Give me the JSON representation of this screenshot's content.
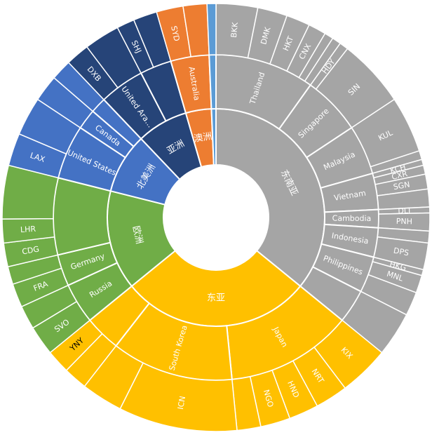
{
  "chart_data": {
    "type": "sunburst",
    "title": "",
    "colors": {
      "东南亚": "#a5a5a5",
      "东亚": "#ffc000",
      "欧洲": "#70ad47",
      "北美洲": "#4472c4",
      "亚洲": "#264478",
      "澳洲": "#ed7d31",
      "other": "#5b9bd5"
    },
    "nodes": [
      {
        "name": "东南亚",
        "value": 160,
        "children": [
          {
            "name": "Thailand",
            "value": 44,
            "children": [
              {
                "name": "BKK",
                "value": 14
              },
              {
                "name": "DMK",
                "value": 10
              },
              {
                "name": "HKT",
                "value": 8
              },
              {
                "name": "CNX",
                "value": 6
              },
              {
                "name": "",
                "value": 3
              },
              {
                "name": "",
                "value": 3
              }
            ]
          },
          {
            "name": "Singapore",
            "value": 26,
            "children": [
              {
                "name": "HDY",
                "value": 3
              },
              {
                "name": "SIN",
                "value": 23
              }
            ]
          },
          {
            "name": "Malaysia",
            "value": 22,
            "children": [
              {
                "name": "KUL",
                "value": 19
              },
              {
                "name": "",
                "value": 3
              }
            ]
          },
          {
            "name": "Vietnam",
            "value": 16,
            "children": [
              {
                "name": "KCH",
                "value": 2
              },
              {
                "name": "CXR",
                "value": 3
              },
              {
                "name": "SGN",
                "value": 5
              },
              {
                "name": "",
                "value": 6
              }
            ]
          },
          {
            "name": "Cambodia",
            "value": 8,
            "children": [
              {
                "name": "DLI",
                "value": 2
              },
              {
                "name": "PNH",
                "value": 6
              }
            ]
          },
          {
            "name": "Indonesia",
            "value": 13,
            "children": [
              {
                "name": "",
                "value": 4
              },
              {
                "name": "DPS",
                "value": 9
              }
            ]
          },
          {
            "name": "Philippines",
            "value": 16,
            "children": [
              {
                "name": "HKG",
                "value": 2
              },
              {
                "name": "MNL",
                "value": 6
              },
              {
                "name": "",
                "value": 8
              }
            ]
          },
          {
            "name": "",
            "value": 15,
            "children": [
              {
                "name": "",
                "value": 15
              }
            ]
          }
        ]
      },
      {
        "name": "东亚",
        "value": 126,
        "children": [
          {
            "name": "Japan",
            "value": 56,
            "children": [
              {
                "name": "KIX",
                "value": 17
              },
              {
                "name": "NRT",
                "value": 11
              },
              {
                "name": "HND",
                "value": 10
              },
              {
                "name": "NGO",
                "value": 10
              },
              {
                "name": "",
                "value": 8
              }
            ]
          },
          {
            "name": "South Korea",
            "value": 54,
            "children": [
              {
                "name": "ICN",
                "value": 40
              },
              {
                "name": "",
                "value": 14
              }
            ]
          },
          {
            "name": "",
            "value": 16,
            "children": [
              {
                "name": "",
                "value": 8
              },
              {
                "name": "YNY",
                "value": 8
              }
            ]
          }
        ]
      },
      {
        "name": "欧洲",
        "value": 66,
        "children": [
          {
            "name": "Russia",
            "value": 18,
            "children": [
              {
                "name": "SVO",
                "value": 10
              },
              {
                "name": "",
                "value": 8
              }
            ]
          },
          {
            "name": "Germany",
            "value": 14,
            "children": [
              {
                "name": "FRA",
                "value": 8
              },
              {
                "name": "",
                "value": 6
              }
            ]
          },
          {
            "name": "",
            "value": 34,
            "children": [
              {
                "name": "CDG",
                "value": 8
              },
              {
                "name": "LHR",
                "value": 8
              },
              {
                "name": "",
                "value": 18
              }
            ]
          }
        ]
      },
      {
        "name": "北美洲",
        "value": 40,
        "children": [
          {
            "name": "United States",
            "value": 24,
            "children": [
              {
                "name": "LAX",
                "value": 11
              },
              {
                "name": "",
                "value": 13
              }
            ]
          },
          {
            "name": "Canada",
            "value": 9,
            "children": [
              {
                "name": "",
                "value": 9
              }
            ]
          },
          {
            "name": "",
            "value": 7,
            "children": [
              {
                "name": "",
                "value": 7
              }
            ]
          }
        ]
      },
      {
        "name": "亚洲",
        "value": 34,
        "children": [
          {
            "name": "United Ara...",
            "value": 20,
            "children": [
              {
                "name": "DXB",
                "value": 8
              },
              {
                "name": "",
                "value": 12
              }
            ]
          },
          {
            "name": "",
            "value": 14,
            "children": [
              {
                "name": "SHJ",
                "value": 6
              },
              {
                "name": "",
                "value": 8
              }
            ]
          }
        ]
      },
      {
        "name": "澳洲",
        "value": 17,
        "children": [
          {
            "name": "Australia",
            "value": 17,
            "children": [
              {
                "name": "SYD",
                "value": 9
              },
              {
                "name": "",
                "value": 8
              }
            ]
          }
        ]
      },
      {
        "name": "",
        "value": 3,
        "children": [
          {
            "name": "",
            "value": 3,
            "children": [
              {
                "name": "",
                "value": 3
              }
            ]
          }
        ]
      }
    ]
  }
}
